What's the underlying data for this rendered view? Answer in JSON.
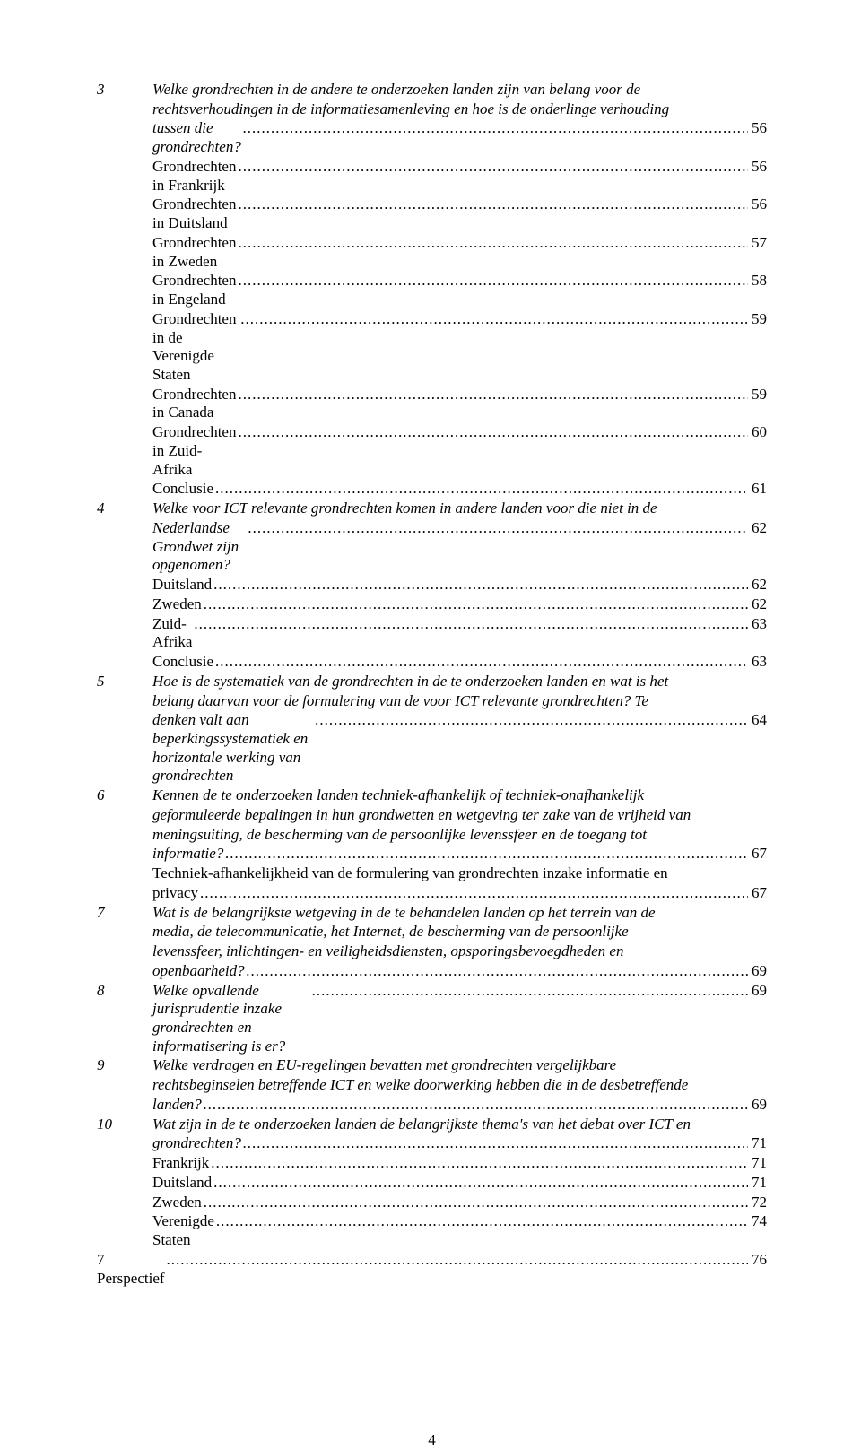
{
  "dots": "........................................................................................................................................................................................................................................................................................",
  "page_number": "4",
  "entries": [
    {
      "num": "3",
      "italic": true,
      "lines": [
        "Welke grondrechten in de andere te onderzoeken landen zijn van belang voor de",
        "rechtsverhoudingen in de informatiesamenleving en hoe is de onderlinge verhouding",
        "tussen die grondrechten?"
      ],
      "page": "56"
    },
    {
      "num": "",
      "italic": false,
      "lines": [
        "Grondrechten in Frankrijk"
      ],
      "page": "56"
    },
    {
      "num": "",
      "italic": false,
      "lines": [
        "Grondrechten in Duitsland"
      ],
      "page": "56"
    },
    {
      "num": "",
      "italic": false,
      "lines": [
        "Grondrechten in Zweden"
      ],
      "page": "57"
    },
    {
      "num": "",
      "italic": false,
      "lines": [
        "Grondrechten in Engeland"
      ],
      "page": "58"
    },
    {
      "num": "",
      "italic": false,
      "lines": [
        "Grondrechten in de Verenigde Staten"
      ],
      "page": "59"
    },
    {
      "num": "",
      "italic": false,
      "lines": [
        "Grondrechten in Canada"
      ],
      "page": "59"
    },
    {
      "num": "",
      "italic": false,
      "lines": [
        "Grondrechten in Zuid-Afrika"
      ],
      "page": "60"
    },
    {
      "num": "",
      "italic": false,
      "lines": [
        "Conclusie"
      ],
      "page": "61"
    },
    {
      "num": "4",
      "italic": true,
      "lines": [
        "Welke voor ICT relevante grondrechten komen in andere landen voor die niet in de",
        "Nederlandse Grondwet zijn opgenomen?"
      ],
      "page": "62"
    },
    {
      "num": "",
      "italic": false,
      "lines": [
        "Duitsland"
      ],
      "page": "62"
    },
    {
      "num": "",
      "italic": false,
      "lines": [
        "Zweden"
      ],
      "page": "62"
    },
    {
      "num": "",
      "italic": false,
      "lines": [
        "Zuid-Afrika"
      ],
      "page": "63"
    },
    {
      "num": "",
      "italic": false,
      "lines": [
        "Conclusie"
      ],
      "page": "63"
    },
    {
      "num": "5",
      "italic": true,
      "lines": [
        "Hoe is de systematiek van de grondrechten in de te onderzoeken landen en wat is het",
        "belang daarvan voor de formulering van de voor ICT relevante grondrechten? Te",
        "denken valt aan beperkingssystematiek en horizontale werking van grondrechten"
      ],
      "page": "64"
    },
    {
      "num": "6",
      "italic": true,
      "lines": [
        "Kennen de te onderzoeken landen techniek-afhankelijk of techniek-onafhankelijk",
        "geformuleerde bepalingen in hun grondwetten en wetgeving ter zake van de vrijheid van",
        "meningsuiting, de bescherming van de persoonlijke levenssfeer en de toegang tot",
        "informatie?"
      ],
      "page": "67"
    },
    {
      "num": "",
      "italic": false,
      "lines": [
        "Techniek-afhankelijkheid van de formulering van grondrechten inzake informatie en",
        "privacy"
      ],
      "page": "67"
    },
    {
      "num": "7",
      "italic": true,
      "lines": [
        "Wat is de belangrijkste wetgeving in de te behandelen landen op het terrein van de",
        "media, de telecommunicatie, het Internet, de bescherming van de persoonlijke",
        "levenssfeer, inlichtingen- en veiligheidsdiensten, opsporingsbevoegdheden en",
        "openbaarheid?"
      ],
      "page": "69"
    },
    {
      "num": "8",
      "italic": true,
      "lines": [
        "Welke opvallende jurisprudentie inzake grondrechten en informatisering is er?"
      ],
      "page": "69"
    },
    {
      "num": "9",
      "italic": true,
      "lines": [
        "Welke verdragen en EU-regelingen bevatten met grondrechten vergelijkbare",
        "rechtsbeginselen betreffende ICT en welke doorwerking hebben die in de desbetreffende",
        "landen?"
      ],
      "page": "69"
    },
    {
      "num": "10",
      "italic": true,
      "lines": [
        "Wat zijn in de te onderzoeken landen de belangrijkste thema's van het debat over ICT en",
        "grondrechten?"
      ],
      "page": "71"
    },
    {
      "num": "",
      "italic": false,
      "lines": [
        "Frankrijk"
      ],
      "page": "71"
    },
    {
      "num": "",
      "italic": false,
      "lines": [
        "Duitsland"
      ],
      "page": "71"
    },
    {
      "num": "",
      "italic": false,
      "lines": [
        "Zweden"
      ],
      "page": "72"
    },
    {
      "num": "",
      "italic": false,
      "lines": [
        "Verenigde Staten"
      ],
      "page": "74"
    },
    {
      "num": "__L0__",
      "italic": false,
      "lines": [
        "7 Perspectief"
      ],
      "page": "76"
    }
  ]
}
